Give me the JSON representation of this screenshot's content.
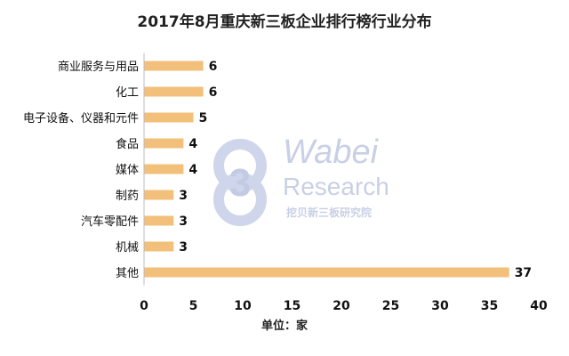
{
  "chart_data": {
    "type": "bar",
    "orientation": "horizontal",
    "title": "2017年8月重庆新三板企业排行榜行业分布",
    "xlabel": "单位：家",
    "ylabel": "",
    "categories": [
      "商业服务与用品",
      "化工",
      "电子设备、仪器和元件",
      "食品",
      "媒体",
      "制药",
      "汽车零配件",
      "机械",
      "其他"
    ],
    "values": [
      6,
      6,
      5,
      4,
      4,
      3,
      3,
      3,
      37
    ],
    "xlim": [
      0,
      40
    ],
    "xticks": [
      0,
      5,
      10,
      15,
      20,
      25,
      30,
      35,
      40
    ],
    "grid": false,
    "legend": "none",
    "bar_color": "#f2c07a"
  },
  "watermark": {
    "brand_line1": "Wabei",
    "brand_line2": "Research",
    "brand_cn": "挖贝新三板研究院"
  }
}
